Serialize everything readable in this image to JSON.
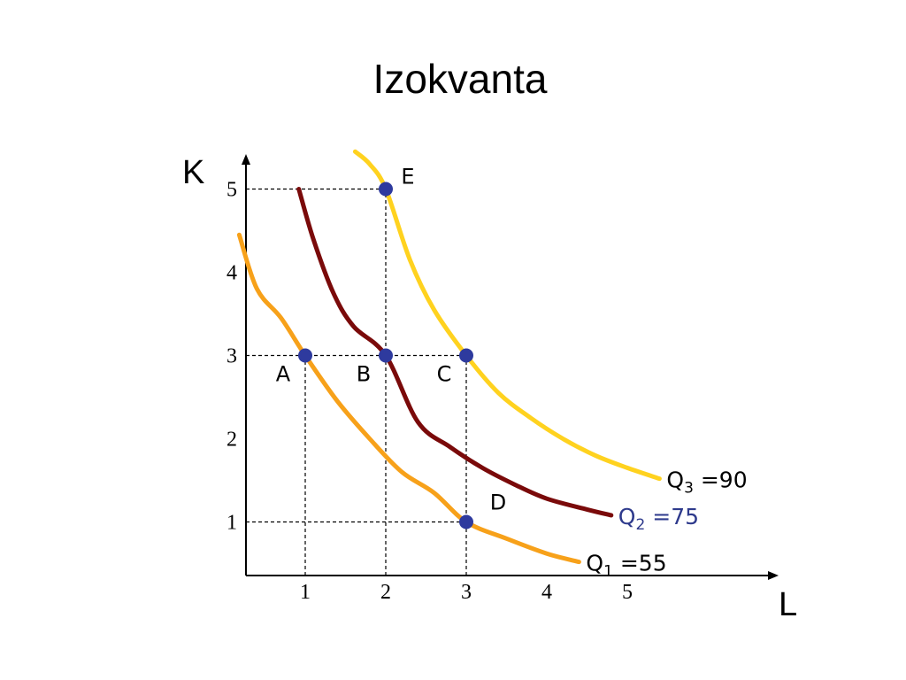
{
  "title": "Izokvanta",
  "chart_data": {
    "type": "line",
    "title": "Izokvanta",
    "xlabel": "L",
    "ylabel": "K",
    "xlim": [
      0,
      5.9
    ],
    "ylim": [
      0,
      5.3
    ],
    "x_ticks": [
      "1",
      "2",
      "3",
      "4",
      "5"
    ],
    "y_ticks": [
      "1",
      "2",
      "3",
      "4",
      "5"
    ],
    "grid": false,
    "series": [
      {
        "name": "Q1",
        "label": "Q",
        "sub": "1",
        "suffix": " =55",
        "output": 55,
        "color": "#F7A11A",
        "label_color": "#000000",
        "x": [
          0.18,
          0.4,
          0.7,
          1.0,
          1.4,
          1.8,
          2.2,
          2.6,
          3.0,
          3.5,
          4.0,
          4.4
        ],
        "y": [
          4.45,
          3.8,
          3.45,
          3.0,
          2.45,
          2.0,
          1.6,
          1.35,
          1.0,
          0.8,
          0.62,
          0.52
        ]
      },
      {
        "name": "Q2",
        "label": "Q",
        "sub": "2",
        "suffix": " =75",
        "output": 75,
        "color": "#7A0A0A",
        "label_color": "#2E3A8C",
        "x": [
          0.92,
          1.1,
          1.35,
          1.6,
          2.0,
          2.4,
          2.8,
          3.2,
          3.6,
          4.0,
          4.5,
          4.8
        ],
        "y": [
          5.0,
          4.4,
          3.75,
          3.35,
          3.0,
          2.2,
          1.9,
          1.65,
          1.45,
          1.28,
          1.15,
          1.08
        ]
      },
      {
        "name": "Q3",
        "label": "Q",
        "sub": "3",
        "suffix": " =90",
        "output": 90,
        "color": "#FFD21F",
        "label_color": "#000000",
        "x": [
          1.62,
          1.8,
          2.0,
          2.3,
          2.6,
          3.0,
          3.4,
          3.8,
          4.2,
          4.6,
          5.0,
          5.4
        ],
        "y": [
          5.45,
          5.3,
          5.0,
          4.15,
          3.55,
          3.0,
          2.55,
          2.25,
          2.0,
          1.8,
          1.65,
          1.52
        ]
      }
    ],
    "points": [
      {
        "label": "A",
        "x": 1,
        "y": 3,
        "label_pos": "below-left"
      },
      {
        "label": "B",
        "x": 2,
        "y": 3,
        "label_pos": "below-left"
      },
      {
        "label": "C",
        "x": 3,
        "y": 3,
        "label_pos": "below-left"
      },
      {
        "label": "D",
        "x": 3,
        "y": 1,
        "label_pos": "above-right"
      },
      {
        "label": "E",
        "x": 2,
        "y": 5,
        "label_pos": "right"
      }
    ],
    "point_color": "#2E3A9E",
    "guides": [
      {
        "from": [
          0,
          5
        ],
        "to": [
          2,
          5
        ]
      },
      {
        "from": [
          0,
          3
        ],
        "to": [
          3,
          3
        ]
      },
      {
        "from": [
          0,
          1
        ],
        "to": [
          3,
          1
        ]
      },
      {
        "from": [
          1,
          0
        ],
        "to": [
          1,
          3
        ]
      },
      {
        "from": [
          2,
          0
        ],
        "to": [
          2,
          5
        ]
      },
      {
        "from": [
          3,
          0
        ],
        "to": [
          3,
          3
        ]
      }
    ]
  }
}
